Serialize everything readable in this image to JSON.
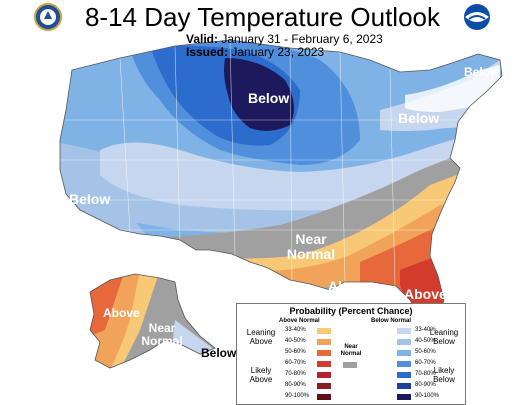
{
  "title": "8-14 Day Temperature Outlook",
  "valid_label": "Valid:",
  "valid_value": "January 31 - February 6, 2023",
  "issued_label": "Issued:",
  "issued_value": "January 23, 2023",
  "map_labels": {
    "below_north": "Below",
    "below_northeast": "Below",
    "below_maine": "Below",
    "below_california": "Below",
    "near_normal_center": "Near Normal",
    "above_south": "Above",
    "above_florida": "Above",
    "above_alaska": "Above",
    "near_normal_alaska": "Near Normal",
    "below_alaska": "Below"
  },
  "legend": {
    "title": "Probability (Percent Chance)",
    "above_normal_head": "Above Normal",
    "below_normal_head": "Below Normal",
    "near_normal_label": "Near Normal",
    "leaning_above": "Leaning Above",
    "likely_above": "Likely Above",
    "leaning_below": "Leaning Below",
    "likely_below": "Likely Below",
    "ranges": [
      "33-40%",
      "40-50%",
      "50-60%",
      "60-70%",
      "70-80%",
      "80-90%",
      "90-100%"
    ],
    "above_colors": [
      "#f7c977",
      "#f1a35a",
      "#e7683a",
      "#d33b2c",
      "#b5212d",
      "#8c1a25",
      "#5e0f18"
    ],
    "below_colors": [
      "#c5d6ee",
      "#a5c3e6",
      "#7fb2e5",
      "#4f8fdc",
      "#2b6ccd",
      "#1e3f9a",
      "#1c1a5c"
    ],
    "near_color": "#a0a0a0"
  },
  "logos": {
    "left_logo": "doc-seal-icon",
    "right_logo": "noaa-logo-icon"
  }
}
